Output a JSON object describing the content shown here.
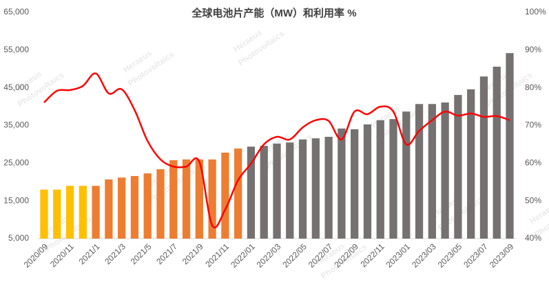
{
  "chart_data": {
    "type": "bar_line",
    "title": "全球电池片产能（MW）和利用率 %",
    "watermark": {
      "brand": "Heraeus",
      "sub": "Photovoltaics"
    },
    "categories": [
      "2020/09",
      null,
      "2020/11",
      null,
      "2021/1",
      null,
      "2021/3",
      null,
      "2021/5",
      null,
      "2021/7",
      null,
      "2021/9",
      null,
      "2021/11",
      null,
      "2022/01",
      null,
      "2022/03",
      null,
      "2022/05",
      null,
      "2022/07",
      null,
      "2022/09",
      null,
      "2022/11",
      null,
      "2023/01",
      null,
      "2023/03",
      null,
      "2023/05",
      null,
      "2023/07",
      null,
      "2023/09"
    ],
    "series": [
      {
        "type": "bar",
        "colors": [
          "#ffc000",
          "#ffc000",
          "#ffc000",
          "#ffc000",
          "#ed7d31",
          "#ed7d31",
          "#ed7d31",
          "#ed7d31",
          "#ed7d31",
          "#ed7d31",
          "#ed7d31",
          "#ed7d31",
          "#ed7d31",
          "#ed7d31",
          "#ed7d31",
          "#ed7d31",
          "#767171",
          "#767171",
          "#767171",
          "#767171",
          "#767171",
          "#767171",
          "#767171",
          "#767171",
          "#767171",
          "#767171",
          "#767171",
          "#767171",
          "#767171",
          "#767171",
          "#767171",
          "#767171",
          "#767171",
          "#767171",
          "#767171",
          "#767171",
          "#767171"
        ],
        "values": [
          18000,
          18000,
          19000,
          19000,
          19000,
          20700,
          21200,
          21600,
          22300,
          23400,
          25800,
          26000,
          26000,
          26000,
          27800,
          28900,
          29400,
          29600,
          30200,
          30500,
          31300,
          31600,
          32000,
          34200,
          34000,
          35300,
          36400,
          36700,
          38700,
          40700,
          40700,
          41100,
          43100,
          44600,
          48000,
          50600,
          54200
        ]
      },
      {
        "type": "line",
        "color": "#ff0000",
        "axis": "y2",
        "values": [
          76.1,
          79.2,
          79.4,
          80.5,
          83.8,
          78.5,
          79.6,
          74.1,
          65.9,
          61.0,
          59.1,
          59.1,
          60.4,
          43.5,
          47.7,
          55.5,
          59.9,
          65.0,
          67.0,
          66.3,
          69.5,
          71.4,
          71.2,
          66.3,
          73.7,
          73.0,
          75.0,
          73.7,
          65.0,
          68.6,
          71.4,
          73.7,
          72.6,
          73.2,
          72.3,
          72.5,
          71.4
        ]
      }
    ],
    "ylim": [
      5000,
      65000
    ],
    "yticks": [
      {
        "value": 5000,
        "label": "5,000"
      },
      {
        "value": 15000,
        "label": "15,000"
      },
      {
        "value": 25000,
        "label": "25,000"
      },
      {
        "value": 35000,
        "label": "35,000"
      },
      {
        "value": 45000,
        "label": "45,000"
      },
      {
        "value": 55000,
        "label": "55,000"
      },
      {
        "value": 65000,
        "label": "65,000"
      }
    ],
    "y2lim": [
      40,
      100
    ],
    "y2ticks": [
      {
        "value": 40,
        "label": "40%"
      },
      {
        "value": 50,
        "label": "50%"
      },
      {
        "value": 60,
        "label": "60%"
      },
      {
        "value": 70,
        "label": "70%"
      },
      {
        "value": 80,
        "label": "80%"
      },
      {
        "value": 90,
        "label": "90%"
      },
      {
        "value": 100,
        "label": "100%"
      }
    ],
    "grid": false
  }
}
